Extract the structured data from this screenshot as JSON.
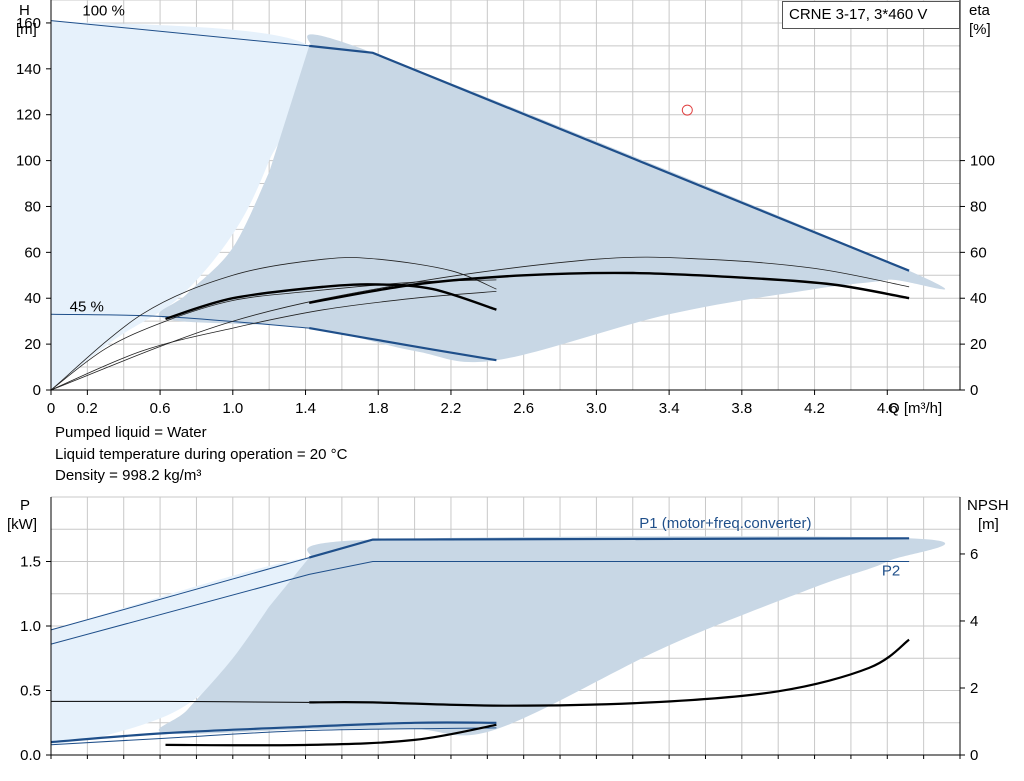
{
  "title_box": "CRNE 3-17, 3*460 V",
  "info": [
    "Pumped liquid = Water",
    "Liquid temperature during operation = 20 °C",
    "Density = 998.2 kg/m³"
  ],
  "colors": {
    "blue": "#1f4f8a",
    "band_light": "#e6f1fb",
    "band_dark": "#c8d7e5",
    "grid": "#c8c8c8",
    "marker": "#e04040"
  },
  "chart_data": [
    {
      "type": "line",
      "name": "head-efficiency",
      "xlabel": "Q [m³/h]",
      "ylabel_left": [
        "H",
        "[m]"
      ],
      "ylabel_right": [
        "eta",
        "[%]"
      ],
      "x_ticks": [
        "0",
        "0.2",
        "0.6",
        "1.0",
        "1.4",
        "1.8",
        "2.2",
        "2.6",
        "3.0",
        "3.4",
        "3.8",
        "4.2",
        "4.6"
      ],
      "xlim": [
        0,
        5.0
      ],
      "ylim": [
        0,
        170
      ],
      "y_ticks_left": [
        0,
        20,
        40,
        60,
        80,
        100,
        120,
        140,
        160
      ],
      "y_ticks_right": [
        0,
        20,
        40,
        60,
        80,
        100
      ],
      "speed_labels": [
        {
          "text": "100 %",
          "x": 0.2,
          "y": 165
        },
        {
          "text": "45 %",
          "x": 0.13,
          "y": 36
        }
      ],
      "envelope_light": [
        [
          0,
          161
        ],
        [
          1.42,
          150
        ],
        [
          1.2,
          100
        ],
        [
          1.0,
          68
        ],
        [
          0.7,
          40
        ],
        [
          0.35,
          22
        ],
        [
          0,
          0
        ]
      ],
      "envelope_dark": [
        [
          1.42,
          150
        ],
        [
          1.77,
          147
        ],
        [
          4.72,
          52
        ],
        [
          4.6,
          48
        ],
        [
          4.2,
          44
        ],
        [
          3.4,
          33
        ],
        [
          2.45,
          13
        ],
        [
          2.0,
          17
        ],
        [
          1.42,
          27
        ],
        [
          0.63,
          31
        ],
        [
          0.75,
          42
        ],
        [
          1.0,
          62
        ],
        [
          1.2,
          95
        ]
      ],
      "head_100": [
        [
          0,
          161
        ],
        [
          1.42,
          150
        ],
        [
          1.77,
          147
        ],
        [
          4.72,
          52
        ]
      ],
      "head_45": [
        [
          0,
          33
        ],
        [
          0.63,
          32
        ],
        [
          1.42,
          27
        ],
        [
          2.0,
          19
        ],
        [
          2.45,
          13
        ]
      ],
      "eta_thin_1": [
        [
          0,
          0
        ],
        [
          0.5,
          33
        ],
        [
          1.0,
          50
        ],
        [
          1.5,
          57
        ],
        [
          1.8,
          57
        ],
        [
          2.2,
          52
        ],
        [
          2.45,
          44
        ]
      ],
      "eta_thin_2": [
        [
          0,
          0
        ],
        [
          1.0,
          30
        ],
        [
          2.0,
          47
        ],
        [
          3.0,
          57
        ],
        [
          3.6,
          57
        ],
        [
          4.2,
          53
        ],
        [
          4.72,
          45
        ]
      ],
      "eta_thin_3": [
        [
          0,
          0
        ],
        [
          0.3,
          18
        ],
        [
          0.63,
          30
        ],
        [
          1.0,
          39
        ],
        [
          1.42,
          43
        ],
        [
          2.0,
          47
        ],
        [
          2.45,
          48
        ]
      ],
      "eta_thin_4": [
        [
          0,
          0
        ],
        [
          0.5,
          17
        ],
        [
          1.0,
          27
        ],
        [
          1.5,
          35
        ],
        [
          2.0,
          40
        ],
        [
          2.45,
          43
        ]
      ],
      "eta_bold_1": [
        [
          0.63,
          31
        ],
        [
          1.0,
          40
        ],
        [
          1.5,
          45
        ],
        [
          1.8,
          46
        ],
        [
          2.1,
          44
        ],
        [
          2.45,
          35
        ]
      ],
      "eta_bold_2": [
        [
          1.42,
          38
        ],
        [
          2.0,
          46
        ],
        [
          2.6,
          50
        ],
        [
          3.2,
          51
        ],
        [
          3.8,
          49
        ],
        [
          4.3,
          46
        ],
        [
          4.72,
          40
        ]
      ],
      "marker": {
        "x": 3.5,
        "y": 122
      }
    },
    {
      "type": "line",
      "name": "power-npsh",
      "ylabel_left": [
        "P",
        "[kW]"
      ],
      "ylabel_right": [
        "NPSH",
        "[m]"
      ],
      "xlim": [
        0,
        5.0
      ],
      "ylim": [
        0,
        2.0
      ],
      "y_ticks_left": [
        "0.0",
        "0.5",
        "1.0",
        "1.5"
      ],
      "y_ticks_right": [
        0,
        2,
        4,
        6
      ],
      "series_labels": [
        {
          "text": "P1 (motor+freq.converter)",
          "x": 3.5,
          "y": 1.76
        },
        {
          "text": "P2",
          "x": 4.57,
          "y": 1.39
        }
      ],
      "envelope_light": [
        [
          0,
          0.97
        ],
        [
          1.42,
          1.53
        ],
        [
          1.2,
          1.1
        ],
        [
          1.0,
          0.7
        ],
        [
          0.7,
          0.35
        ],
        [
          0.3,
          0.15
        ],
        [
          0,
          0.08
        ]
      ],
      "envelope_dark": [
        [
          1.42,
          1.53
        ],
        [
          1.77,
          1.67
        ],
        [
          4.72,
          1.68
        ],
        [
          4.6,
          1.5
        ],
        [
          4.2,
          1.3
        ],
        [
          3.4,
          0.85
        ],
        [
          2.45,
          0.2
        ],
        [
          2.0,
          0.2
        ],
        [
          1.42,
          0.2
        ],
        [
          0.63,
          0.17
        ],
        [
          0.75,
          0.35
        ],
        [
          1.0,
          0.75
        ],
        [
          1.2,
          1.15
        ]
      ],
      "p1_100": [
        [
          0,
          0.97
        ],
        [
          1.42,
          1.53
        ],
        [
          1.77,
          1.67
        ],
        [
          4.72,
          1.68
        ]
      ],
      "p2_100": [
        [
          0,
          0.86
        ],
        [
          1.42,
          1.4
        ],
        [
          1.77,
          1.5
        ],
        [
          4.72,
          1.5
        ]
      ],
      "p1_45": [
        [
          0,
          0.1
        ],
        [
          0.63,
          0.17
        ],
        [
          1.42,
          0.22
        ],
        [
          2.0,
          0.25
        ],
        [
          2.45,
          0.25
        ]
      ],
      "p2_45": [
        [
          0,
          0.08
        ],
        [
          0.63,
          0.13
        ],
        [
          1.42,
          0.19
        ],
        [
          2.45,
          0.21
        ]
      ],
      "npsh_bold": [
        [
          1.42,
          1.57
        ],
        [
          1.77,
          1.57
        ],
        [
          2.5,
          1.47
        ],
        [
          3.3,
          1.57
        ],
        [
          4.0,
          1.9
        ],
        [
          4.5,
          2.6
        ],
        [
          4.72,
          3.44
        ]
      ],
      "npsh_low": [
        [
          0.63,
          0.3
        ],
        [
          1.42,
          0.3
        ],
        [
          2.0,
          0.45
        ],
        [
          2.45,
          0.9
        ]
      ],
      "npsh_flat": [
        [
          0,
          1.6
        ],
        [
          0.63,
          1.6
        ],
        [
          1.42,
          1.57
        ]
      ]
    }
  ]
}
